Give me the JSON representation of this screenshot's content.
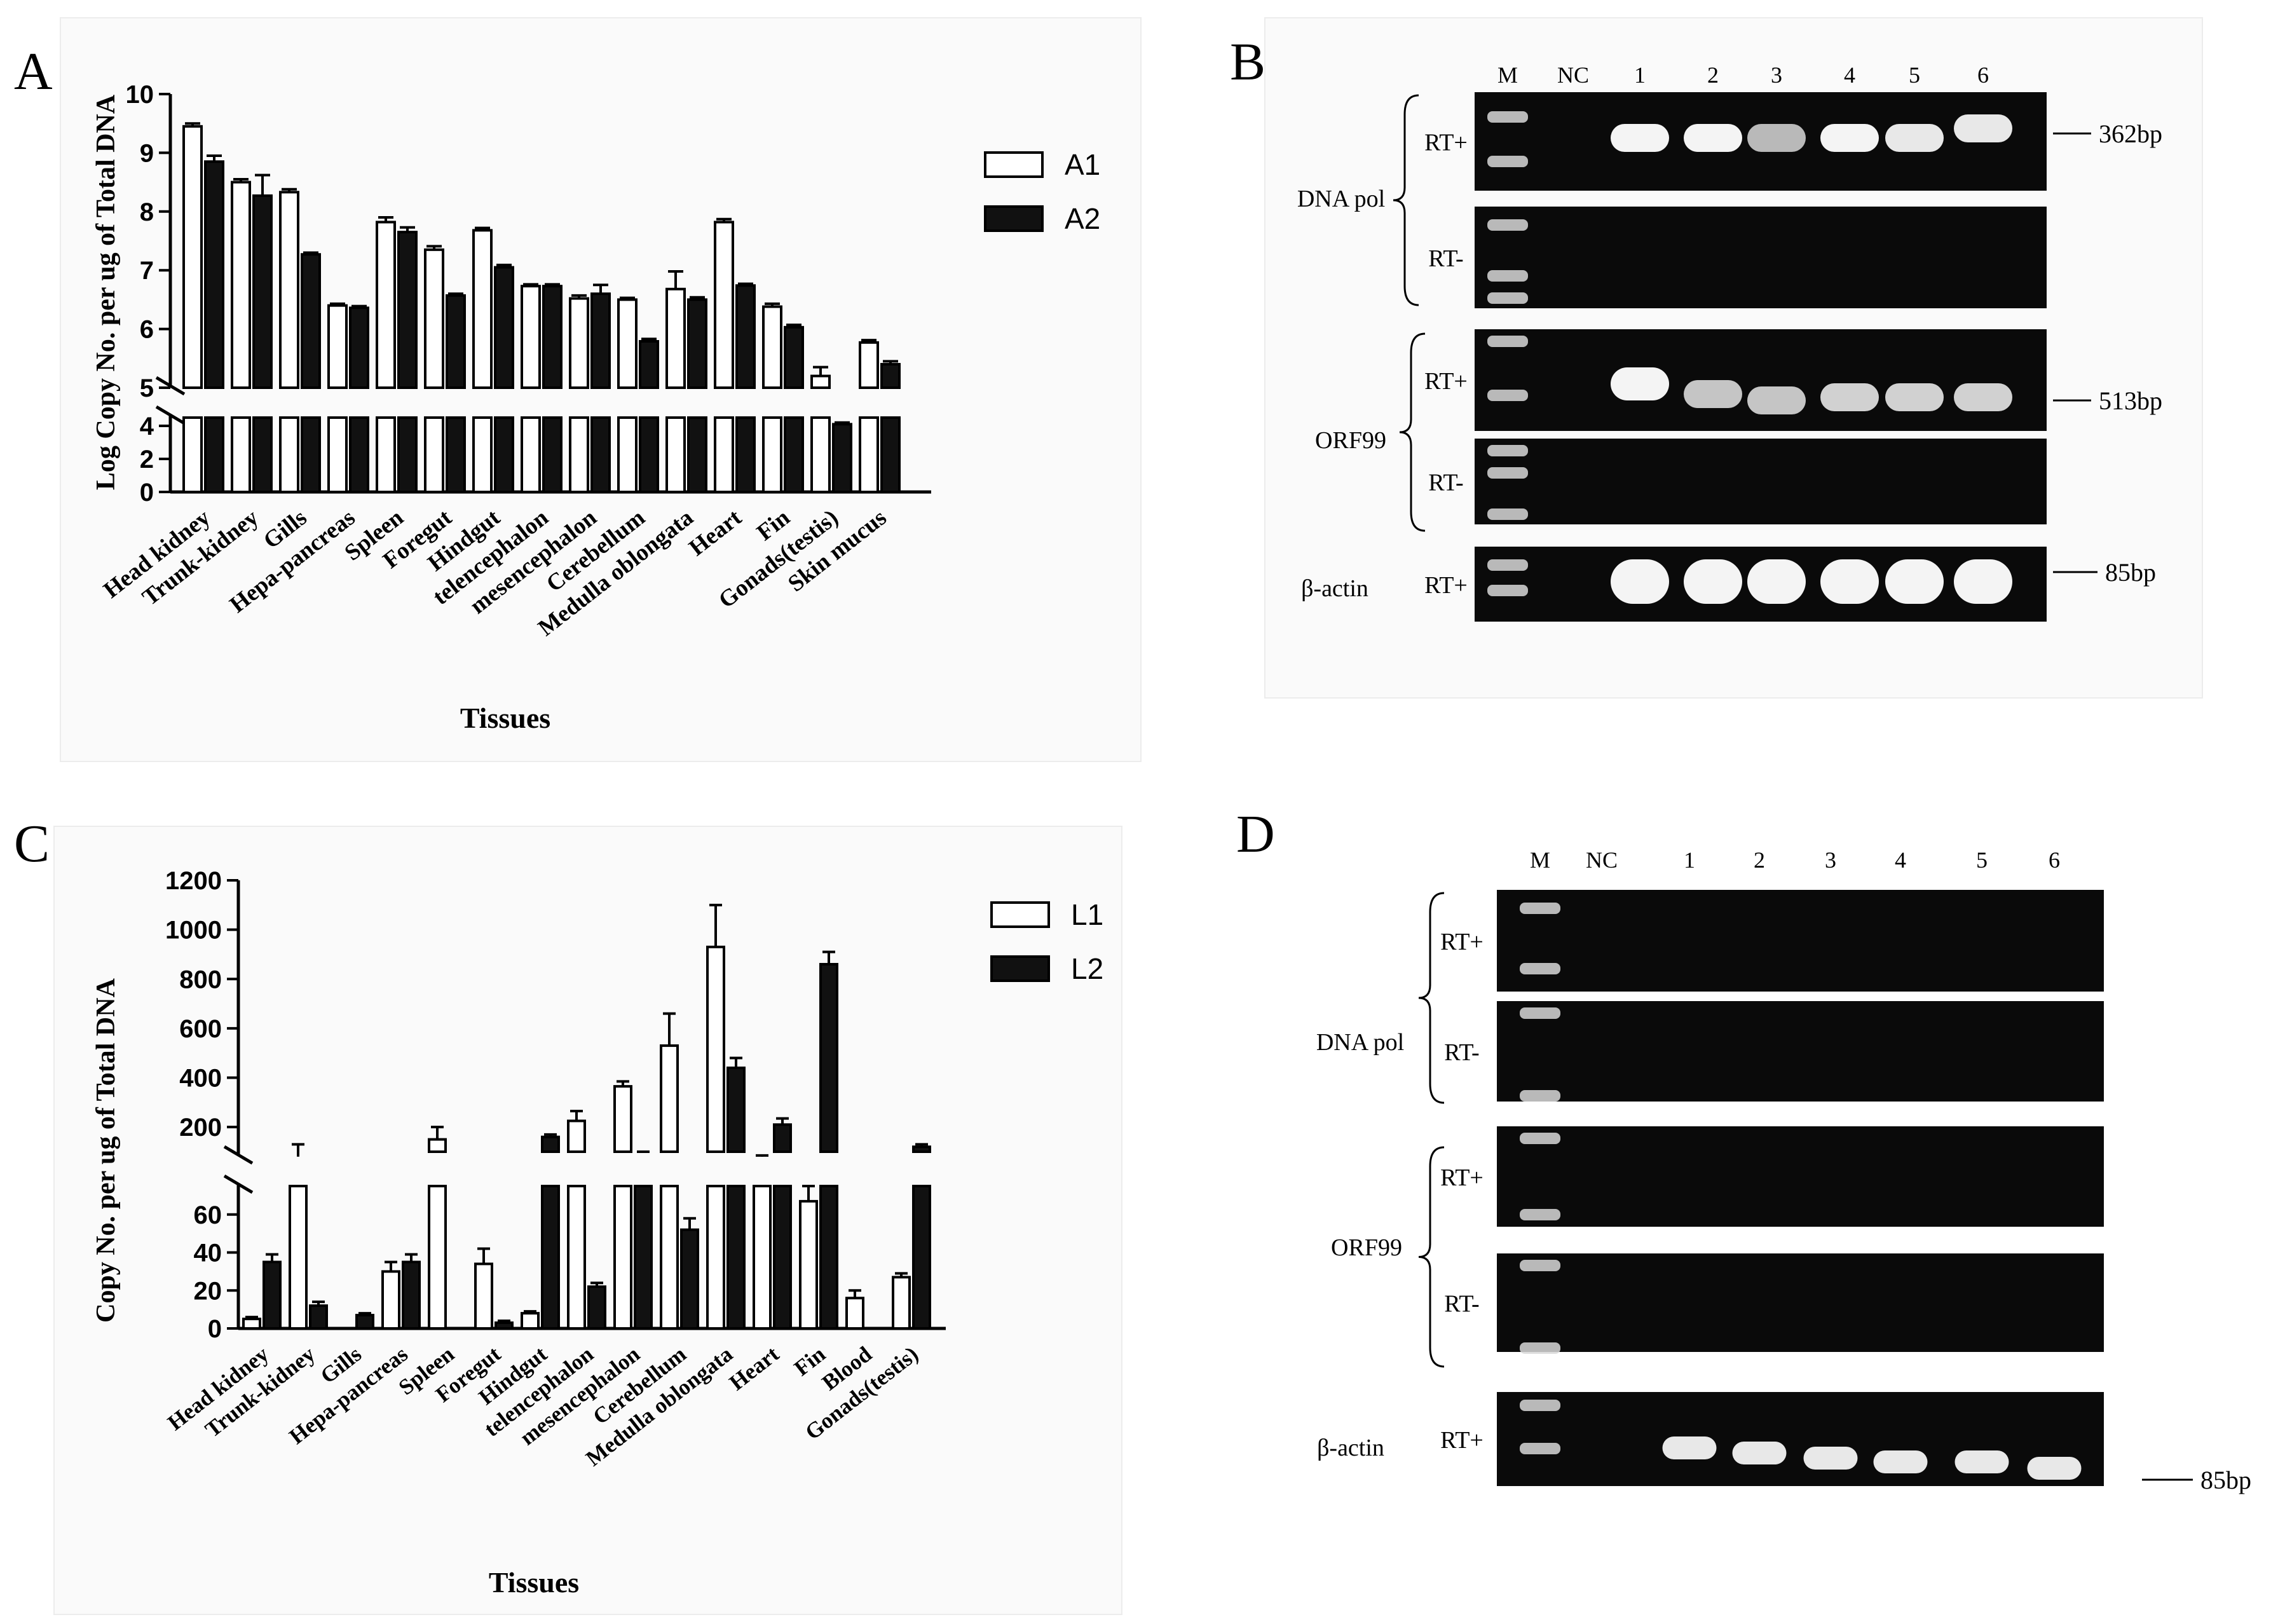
{
  "chart_data": [
    {
      "panel": "A",
      "type": "bar",
      "categories": [
        "Head kidney",
        "Trunk-kidney",
        "Gills",
        "Hepa-pancreas",
        "Spleen",
        "Foregut",
        "Hindgut",
        "telencephalon",
        "mesencephalon",
        "Cerebellum",
        "Medulla oblongata",
        "Heart",
        "Fin",
        "Gonads(testis)",
        "Skin mucus"
      ],
      "series": [
        {
          "name": "A1",
          "fill": "#ffffff",
          "values": [
            9.45,
            8.5,
            8.33,
            6.4,
            7.82,
            7.35,
            7.68,
            6.73,
            6.52,
            6.5,
            6.68,
            7.82,
            6.38,
            5.2,
            5.77
          ],
          "errors": [
            0.05,
            0.05,
            0.05,
            0.03,
            0.08,
            0.06,
            0.04,
            0.03,
            0.05,
            0.03,
            0.3,
            0.05,
            0.05,
            0.15,
            0.04
          ]
        },
        {
          "name": "A2",
          "fill": "#111111",
          "values": [
            8.85,
            8.27,
            7.27,
            6.36,
            7.65,
            6.57,
            7.05,
            6.73,
            6.6,
            5.79,
            6.5,
            6.74,
            6.03,
            4.1,
            5.4
          ],
          "errors": [
            0.1,
            0.35,
            0.03,
            0.03,
            0.08,
            0.03,
            0.04,
            0.03,
            0.15,
            0.04,
            0.04,
            0.03,
            0.04,
            0.1,
            0.05
          ]
        }
      ],
      "ylabel": "Log Copy No. per ug of Total DNA",
      "xlabel": "Tissues",
      "ylim": [
        0,
        10
      ],
      "axis_break": [
        4.5,
        5
      ],
      "yticks_lower": [
        0,
        2,
        4
      ],
      "yticks_upper": [
        5,
        6,
        7,
        8,
        9,
        10
      ]
    },
    {
      "panel": "C",
      "type": "bar",
      "categories": [
        "Head kidney",
        "Trunk-kidney",
        "Gills",
        "Hepa-pancreas",
        "Spleen",
        "Foregut",
        "Hindgut",
        "telencephalon",
        "mesencephalon",
        "Cerebellum",
        "Medulla oblongata",
        "Heart",
        "Fin",
        "Blood",
        "Gonads(testis)"
      ],
      "series": [
        {
          "name": "L1",
          "fill": "#ffffff",
          "values": [
            5,
            80,
            0,
            30,
            150,
            34,
            8,
            225,
            365,
            530,
            930,
            80,
            67,
            16,
            27
          ],
          "errors": [
            1,
            50,
            0,
            5,
            50,
            8,
            1,
            40,
            20,
            130,
            170,
            5,
            8,
            4,
            2
          ]
        },
        {
          "name": "L2",
          "fill": "#111111",
          "values": [
            35,
            12,
            7,
            35,
            0,
            3,
            160,
            22,
            95,
            52,
            440,
            210,
            860,
            0,
            120
          ],
          "errors": [
            4,
            2,
            1,
            4,
            0,
            1,
            10,
            2,
            5,
            6,
            40,
            25,
            50,
            0,
            10
          ]
        }
      ],
      "ylabel": "Copy No. per ug of Total DNA",
      "xlabel": "Tissues",
      "ylim": [
        0,
        1200
      ],
      "axis_break": [
        75,
        100
      ],
      "yticks_lower": [
        0,
        20,
        40,
        60
      ],
      "yticks_upper": [
        200,
        400,
        600,
        800,
        1000,
        1200
      ]
    }
  ],
  "panels": {
    "a": {
      "letter": "A"
    },
    "b": {
      "letter": "B"
    },
    "c": {
      "letter": "C"
    },
    "d": {
      "letter": "D"
    }
  },
  "gels": {
    "b": {
      "lanes": [
        "M",
        "NC",
        "1",
        "2",
        "3",
        "4",
        "5",
        "6"
      ],
      "groups": [
        "DNA pol",
        "ORF99",
        "β-actin"
      ],
      "rows": [
        "RT+",
        "RT-",
        "RT+",
        "RT-",
        "RT+"
      ],
      "sizes": [
        "362bp",
        "513bp",
        "85bp"
      ]
    },
    "d": {
      "lanes": [
        "M",
        "NC",
        "1",
        "2",
        "3",
        "4",
        "5",
        "6"
      ],
      "groups": [
        "DNA pol",
        "ORF99",
        "β-actin"
      ],
      "rows": [
        "RT+",
        "RT-",
        "RT+",
        "RT-",
        "RT+"
      ],
      "sizes": [
        "85bp"
      ]
    }
  }
}
